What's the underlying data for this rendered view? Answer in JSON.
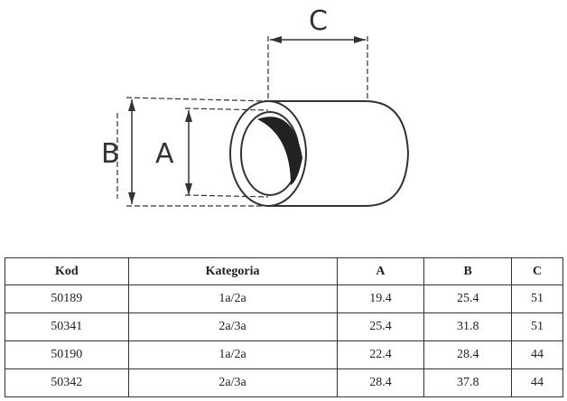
{
  "diagram": {
    "labels": {
      "A": "A",
      "B": "B",
      "C": "C"
    }
  },
  "table": {
    "headers": [
      "Kod",
      "Kategoria",
      "A",
      "B",
      "C"
    ],
    "rows": [
      [
        "50189",
        "1a/2a",
        "19.4",
        "25.4",
        "51"
      ],
      [
        "50341",
        "2a/3a",
        "25.4",
        "31.8",
        "51"
      ],
      [
        "50190",
        "1a/2a",
        "22.4",
        "28.4",
        "44"
      ],
      [
        "50342",
        "2a/3a",
        "28.4",
        "37.8",
        "44"
      ]
    ]
  }
}
